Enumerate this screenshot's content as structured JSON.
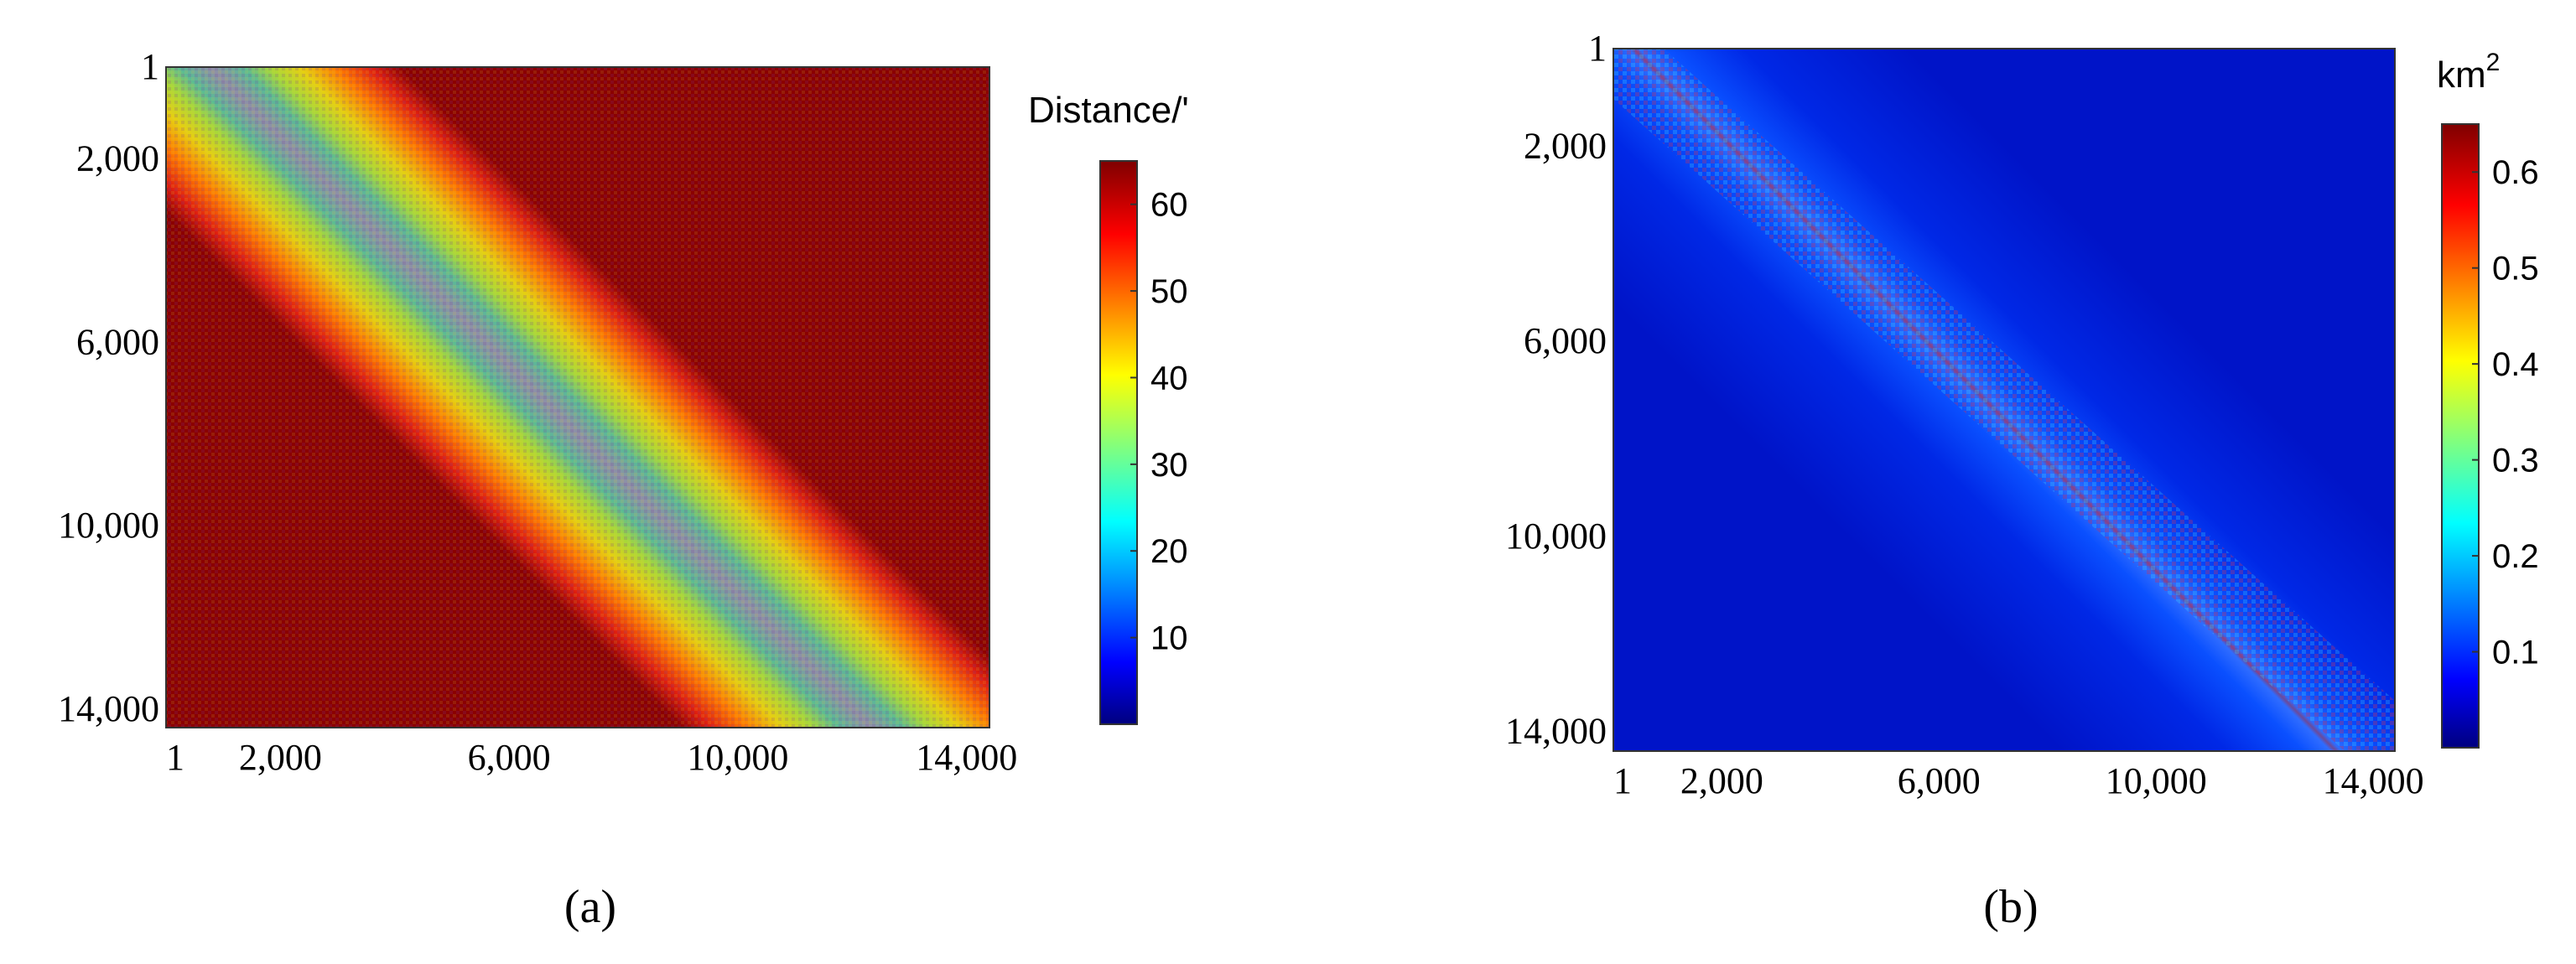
{
  "chart_data": [
    {
      "type": "heatmap",
      "panel_label": "(a)",
      "colorbar_label": "Distance/'",
      "x_ticks": [
        "1",
        "2,000",
        "6,000",
        "10,000",
        "14,000"
      ],
      "x_tick_values": [
        1,
        2000,
        6000,
        10000,
        14000
      ],
      "y_ticks": [
        "1",
        "2,000",
        "6,000",
        "10,000",
        "14,000"
      ],
      "y_tick_values": [
        1,
        2000,
        6000,
        10000,
        14000
      ],
      "xlim": [
        1,
        14400
      ],
      "ylim": [
        1,
        14400
      ],
      "y_inverted": true,
      "colorbar_ticks": [
        "10",
        "20",
        "30",
        "40",
        "50",
        "60"
      ],
      "colorbar_tick_values": [
        10,
        20,
        30,
        40,
        50,
        60
      ],
      "color_range": [
        0,
        65
      ],
      "colormap": "jet",
      "pattern": "value increases with distance from the main diagonal (band width about 9000 indices); saturated maximum in the top-right and bottom-left corners",
      "legend": "right"
    },
    {
      "type": "heatmap",
      "panel_label": "(b)",
      "colorbar_label": "km",
      "colorbar_label_superscript": "2",
      "x_ticks": [
        "1",
        "2,000",
        "6,000",
        "10,000",
        "14,000"
      ],
      "x_tick_values": [
        1,
        2000,
        6000,
        10000,
        14000
      ],
      "y_ticks": [
        "1",
        "2,000",
        "6,000",
        "10,000",
        "14,000"
      ],
      "y_tick_values": [
        1,
        2000,
        6000,
        10000,
        14000
      ],
      "xlim": [
        1,
        14400
      ],
      "ylim": [
        1,
        14400
      ],
      "y_inverted": true,
      "colorbar_ticks": [
        "0.1",
        "0.2",
        "0.3",
        "0.4",
        "0.5",
        "0.6"
      ],
      "colorbar_tick_values": [
        0.1,
        0.2,
        0.3,
        0.4,
        0.5,
        0.6
      ],
      "color_range": [
        0,
        0.65
      ],
      "colormap": "jet",
      "pattern": "narrow band of high values along the main diagonal, low values elsewhere",
      "legend": "right"
    }
  ]
}
